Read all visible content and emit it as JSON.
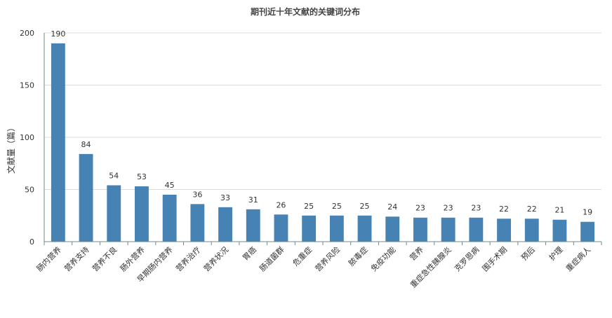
{
  "chart_data": {
    "type": "bar",
    "title": "期刊近十年文献的关键词分布",
    "xlabel": "",
    "ylabel": "文献量（篇）",
    "ylim": [
      0,
      200
    ],
    "yticks": [
      "0",
      "50",
      "100",
      "150",
      "200"
    ],
    "grid": true,
    "bar_color": "#4682b4",
    "categories": [
      "肠内营养",
      "营养支持",
      "营养不良",
      "肠外营养",
      "早期肠内营养",
      "营养治疗",
      "营养状况",
      "胃癌",
      "肠道菌群",
      "危重症",
      "营养风险",
      "脓毒症",
      "免疫功能",
      "营养",
      "重症急性胰腺炎",
      "克罗恩病",
      "围手术期",
      "预后",
      "护理",
      "重症病人"
    ],
    "values": [
      190,
      84,
      54,
      53,
      45,
      36,
      33,
      31,
      26,
      25,
      25,
      25,
      24,
      23,
      23,
      23,
      22,
      22,
      21,
      19
    ],
    "data_labels": [
      "190",
      "84",
      "54",
      "53",
      "45",
      "36",
      "33",
      "31",
      "26",
      "25",
      "25",
      "25",
      "24",
      "23",
      "23",
      "23",
      "22",
      "22",
      "21",
      "19"
    ]
  }
}
